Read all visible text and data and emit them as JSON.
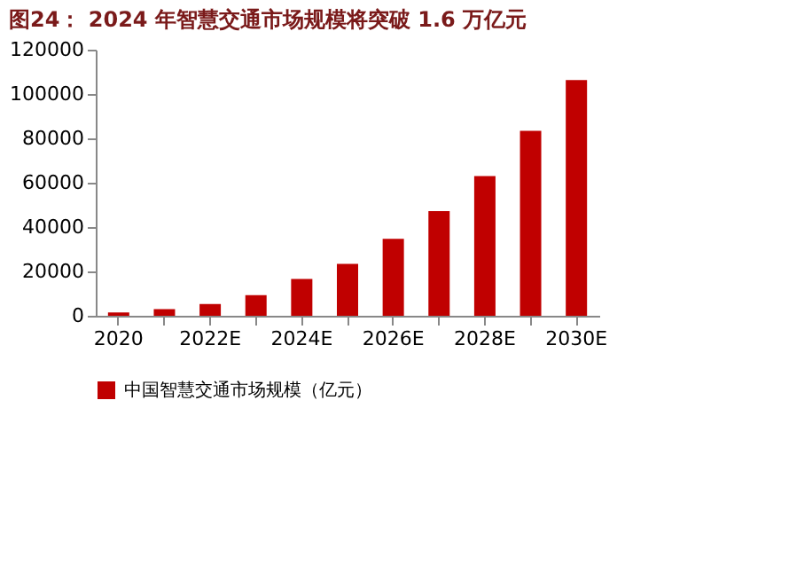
{
  "chart_data": {
    "type": "bar",
    "title": "图24：  2024 年智慧交通市场规模将突破 1.6 万亿元",
    "categories": [
      "2020",
      null,
      "2022E",
      null,
      "2024E",
      null,
      "2026E",
      null,
      "2028E",
      null,
      "2030E"
    ],
    "series": [
      {
        "name": "中国智慧交通市场规模（亿元）",
        "color": "#c00000",
        "values": [
          1500,
          3000,
          5300,
          9300,
          16600,
          23400,
          34700,
          47200,
          63000,
          83400,
          106300
        ]
      }
    ],
    "ylim": [
      0,
      120000
    ],
    "yticks": [
      0,
      20000,
      40000,
      60000,
      80000,
      100000,
      120000
    ],
    "grid": false,
    "legend": "bottom"
  }
}
